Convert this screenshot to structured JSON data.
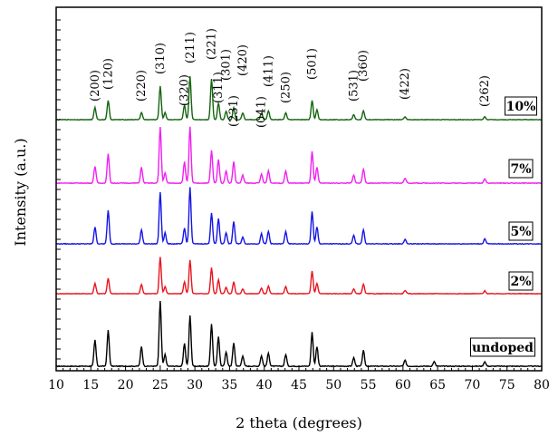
{
  "chart_data": {
    "type": "line",
    "xlabel": "2 theta (degrees)",
    "ylabel": "Intensity (a.u.)",
    "xlim": [
      10,
      80
    ],
    "x_ticks": [
      "10",
      "15",
      "20",
      "25",
      "30",
      "35",
      "40",
      "45",
      "50",
      "55",
      "60",
      "65",
      "70",
      "75",
      "80"
    ],
    "y_ticks_labeled": false,
    "grid": false,
    "legend": "none",
    "reflections": [
      {
        "hkl": "(200)",
        "two_theta": 15.6
      },
      {
        "hkl": "(120)",
        "two_theta": 17.5
      },
      {
        "hkl": "(220)",
        "two_theta": 22.3
      },
      {
        "hkl": "(310)",
        "two_theta": 25.0
      },
      {
        "hkl": "(320)",
        "two_theta": 28.5
      },
      {
        "hkl": "(211)",
        "two_theta": 29.3
      },
      {
        "hkl": "(221)",
        "two_theta": 32.4
      },
      {
        "hkl": "(311)",
        "two_theta": 33.4
      },
      {
        "hkl": "(301)",
        "two_theta": 34.5
      },
      {
        "hkl": "(231)",
        "two_theta": 35.6
      },
      {
        "hkl": "(420)",
        "two_theta": 36.9
      },
      {
        "hkl": "(041)",
        "two_theta": 39.6
      },
      {
        "hkl": "(411)",
        "two_theta": 40.6
      },
      {
        "hkl": "(250)",
        "two_theta": 43.1
      },
      {
        "hkl": "(501)",
        "two_theta": 46.9
      },
      {
        "hkl": "(531)",
        "two_theta": 52.9
      },
      {
        "hkl": "(360)",
        "two_theta": 54.3
      },
      {
        "hkl": "(422)",
        "two_theta": 60.3
      },
      {
        "hkl": "(262)",
        "two_theta": 71.8
      }
    ],
    "series": [
      {
        "name": "undoped",
        "color": "#000000",
        "peaks": [
          [
            15.6,
            0.4
          ],
          [
            17.5,
            0.55
          ],
          [
            22.3,
            0.3
          ],
          [
            25.0,
            1.0
          ],
          [
            25.7,
            0.18
          ],
          [
            28.5,
            0.35
          ],
          [
            29.3,
            0.78
          ],
          [
            32.4,
            0.65
          ],
          [
            33.4,
            0.45
          ],
          [
            34.5,
            0.22
          ],
          [
            35.6,
            0.36
          ],
          [
            36.9,
            0.16
          ],
          [
            39.6,
            0.16
          ],
          [
            40.6,
            0.2
          ],
          [
            43.1,
            0.18
          ],
          [
            46.9,
            0.52
          ],
          [
            47.6,
            0.3
          ],
          [
            52.9,
            0.13
          ],
          [
            54.3,
            0.24
          ],
          [
            60.3,
            0.09
          ],
          [
            64.5,
            0.07
          ],
          [
            71.8,
            0.07
          ]
        ]
      },
      {
        "name": "2%",
        "color": "#e8141e",
        "peaks": [
          [
            15.6,
            0.22
          ],
          [
            17.5,
            0.33
          ],
          [
            22.3,
            0.2
          ],
          [
            25.0,
            0.78
          ],
          [
            25.7,
            0.15
          ],
          [
            28.5,
            0.25
          ],
          [
            29.3,
            0.72
          ],
          [
            32.4,
            0.55
          ],
          [
            33.4,
            0.3
          ],
          [
            34.5,
            0.14
          ],
          [
            35.6,
            0.25
          ],
          [
            36.9,
            0.1
          ],
          [
            39.6,
            0.12
          ],
          [
            40.6,
            0.16
          ],
          [
            43.1,
            0.15
          ],
          [
            46.9,
            0.48
          ],
          [
            47.6,
            0.22
          ],
          [
            52.9,
            0.1
          ],
          [
            54.3,
            0.2
          ],
          [
            60.3,
            0.07
          ],
          [
            71.8,
            0.06
          ]
        ]
      },
      {
        "name": "5%",
        "color": "#1414e6",
        "peaks": [
          [
            15.6,
            0.3
          ],
          [
            17.5,
            0.6
          ],
          [
            22.3,
            0.25
          ],
          [
            25.0,
            0.92
          ],
          [
            25.7,
            0.2
          ],
          [
            28.5,
            0.28
          ],
          [
            29.3,
            1.0
          ],
          [
            32.4,
            0.55
          ],
          [
            33.4,
            0.45
          ],
          [
            34.5,
            0.2
          ],
          [
            35.6,
            0.4
          ],
          [
            36.9,
            0.12
          ],
          [
            39.6,
            0.18
          ],
          [
            40.6,
            0.22
          ],
          [
            43.1,
            0.22
          ],
          [
            46.9,
            0.58
          ],
          [
            47.6,
            0.3
          ],
          [
            52.9,
            0.15
          ],
          [
            54.3,
            0.25
          ],
          [
            60.3,
            0.08
          ],
          [
            71.8,
            0.09
          ]
        ]
      },
      {
        "name": "7%",
        "color": "#f020f0",
        "peaks": [
          [
            15.6,
            0.3
          ],
          [
            17.5,
            0.52
          ],
          [
            22.3,
            0.28
          ],
          [
            25.0,
            1.0
          ],
          [
            25.7,
            0.18
          ],
          [
            28.5,
            0.38
          ],
          [
            29.3,
            1.0
          ],
          [
            32.4,
            0.58
          ],
          [
            33.4,
            0.42
          ],
          [
            34.5,
            0.22
          ],
          [
            35.6,
            0.38
          ],
          [
            36.9,
            0.14
          ],
          [
            39.6,
            0.16
          ],
          [
            40.6,
            0.22
          ],
          [
            43.1,
            0.22
          ],
          [
            46.9,
            0.56
          ],
          [
            47.6,
            0.28
          ],
          [
            52.9,
            0.14
          ],
          [
            54.3,
            0.25
          ],
          [
            60.3,
            0.09
          ],
          [
            71.8,
            0.08
          ]
        ]
      },
      {
        "name": "10%",
        "color": "#14640f",
        "peaks": [
          [
            15.6,
            0.25
          ],
          [
            17.5,
            0.4
          ],
          [
            22.3,
            0.15
          ],
          [
            25.0,
            0.7
          ],
          [
            25.7,
            0.15
          ],
          [
            28.5,
            0.3
          ],
          [
            29.3,
            0.9
          ],
          [
            32.4,
            0.85
          ],
          [
            33.4,
            0.35
          ],
          [
            34.5,
            0.18
          ],
          [
            35.6,
            0.25
          ],
          [
            36.9,
            0.14
          ],
          [
            39.6,
            0.14
          ],
          [
            40.6,
            0.18
          ],
          [
            43.1,
            0.14
          ],
          [
            46.9,
            0.4
          ],
          [
            47.6,
            0.2
          ],
          [
            52.9,
            0.1
          ],
          [
            54.3,
            0.18
          ],
          [
            60.3,
            0.06
          ],
          [
            71.8,
            0.06
          ]
        ]
      }
    ]
  }
}
